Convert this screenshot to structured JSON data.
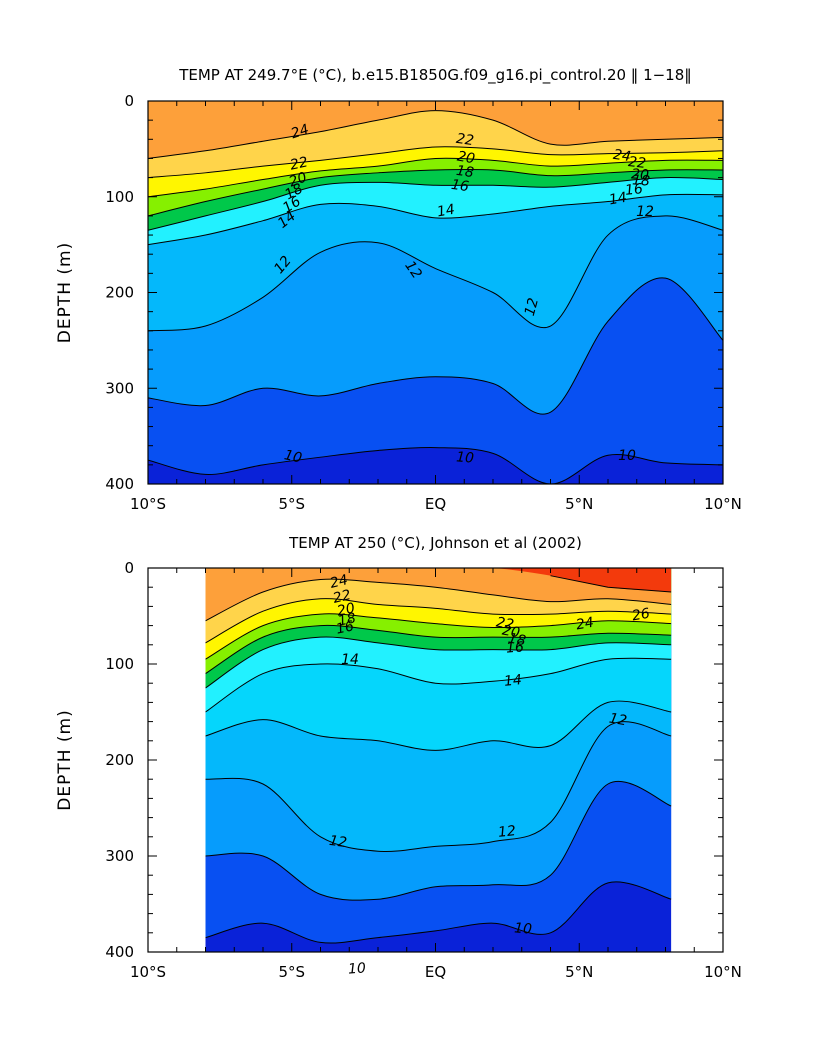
{
  "chart_data": [
    {
      "type": "contour",
      "title": "TEMP AT 249.7°E (°C), b.e15.B1850G.f09_g16.pi_control.20 ‖ 1−18‖",
      "ylabel": "DEPTH (m)",
      "xlabel": "",
      "xticks": [
        "10°S",
        "5°S",
        "EQ",
        "5°N",
        "10°N"
      ],
      "yticks": [
        "0",
        "100",
        "200",
        "300",
        "400"
      ],
      "xlim": [
        -10,
        10
      ],
      "ylim": [
        400,
        0
      ],
      "data_xrange": [
        -10,
        10
      ],
      "levels": [
        10,
        11,
        12,
        13,
        14,
        15,
        16,
        17,
        18,
        19,
        20,
        21,
        22,
        23,
        24,
        25,
        26
      ],
      "isotherm_depths": {
        "x": [
          -10,
          -8,
          -6,
          -4,
          -2,
          0,
          2,
          4,
          6,
          8,
          10
        ],
        "10": [
          375,
          390,
          380,
          372,
          365,
          362,
          368,
          400,
          370,
          378,
          380
        ],
        "11": [
          310,
          318,
          300,
          308,
          295,
          288,
          295,
          325,
          230,
          185,
          250
        ],
        "12": [
          240,
          235,
          205,
          158,
          148,
          175,
          200,
          235,
          140,
          120,
          135
        ],
        "14": [
          150,
          140,
          125,
          108,
          110,
          122,
          118,
          110,
          105,
          98,
          98
        ],
        "16": [
          135,
          120,
          105,
          88,
          85,
          88,
          88,
          90,
          85,
          80,
          82
        ],
        "18": [
          120,
          105,
          92,
          80,
          75,
          72,
          72,
          78,
          75,
          72,
          72
        ],
        "20": [
          100,
          92,
          82,
          73,
          68,
          60,
          62,
          68,
          65,
          62,
          62
        ],
        "22": [
          80,
          75,
          68,
          62,
          55,
          48,
          50,
          56,
          55,
          54,
          52
        ],
        "24": [
          60,
          52,
          42,
          32,
          20,
          10,
          20,
          45,
          42,
          40,
          38
        ]
      },
      "labels": [
        "24",
        "22",
        "20",
        "18",
        "16",
        "14",
        "12",
        "10",
        "22",
        "20",
        "18",
        "16",
        "14",
        "12",
        "12",
        "24",
        "22",
        "20",
        "18",
        "16",
        "14",
        "12",
        "10",
        "10"
      ]
    },
    {
      "type": "contour",
      "title": "TEMP AT 250 (°C), Johnson et al (2002)",
      "ylabel": "DEPTH (m)",
      "xlabel": "",
      "xticks": [
        "10°S",
        "5°S",
        "EQ",
        "5°N",
        "10°N"
      ],
      "yticks": [
        "0",
        "100",
        "200",
        "300",
        "400"
      ],
      "xlim": [
        -10,
        10
      ],
      "ylim": [
        400,
        0
      ],
      "data_xrange": [
        -8,
        8.2
      ],
      "levels": [
        10,
        11,
        12,
        13,
        14,
        15,
        16,
        17,
        18,
        19,
        20,
        21,
        22,
        23,
        24,
        25,
        26
      ],
      "isotherm_depths": {
        "x": [
          -8,
          -6,
          -4,
          -2,
          0,
          2,
          4,
          6,
          8.2
        ],
        "10": [
          385,
          370,
          390,
          385,
          378,
          370,
          380,
          328,
          345
        ],
        "11": [
          300,
          300,
          340,
          345,
          332,
          330,
          320,
          225,
          248
        ],
        "12": [
          220,
          225,
          280,
          295,
          290,
          285,
          265,
          165,
          175
        ],
        "13": [
          175,
          158,
          175,
          180,
          190,
          180,
          185,
          140,
          150
        ],
        "14": [
          150,
          110,
          100,
          105,
          120,
          118,
          110,
          95,
          95
        ],
        "16": [
          125,
          85,
          72,
          78,
          85,
          85,
          85,
          78,
          80
        ],
        "18": [
          110,
          72,
          60,
          65,
          72,
          72,
          72,
          68,
          70
        ],
        "20": [
          95,
          60,
          48,
          52,
          58,
          62,
          60,
          55,
          58
        ],
        "22": [
          78,
          45,
          32,
          38,
          42,
          48,
          48,
          45,
          48
        ],
        "24": [
          55,
          25,
          12,
          15,
          20,
          28,
          35,
          32,
          38
        ],
        "26": [
          null,
          null,
          null,
          null,
          null,
          null,
          8,
          20,
          25
        ]
      },
      "labels": [
        "24",
        "22",
        "20",
        "18",
        "16",
        "14",
        "14",
        "12",
        "12",
        "12",
        "10",
        "10",
        "22",
        "20",
        "18",
        "16",
        "24",
        "26"
      ]
    }
  ]
}
